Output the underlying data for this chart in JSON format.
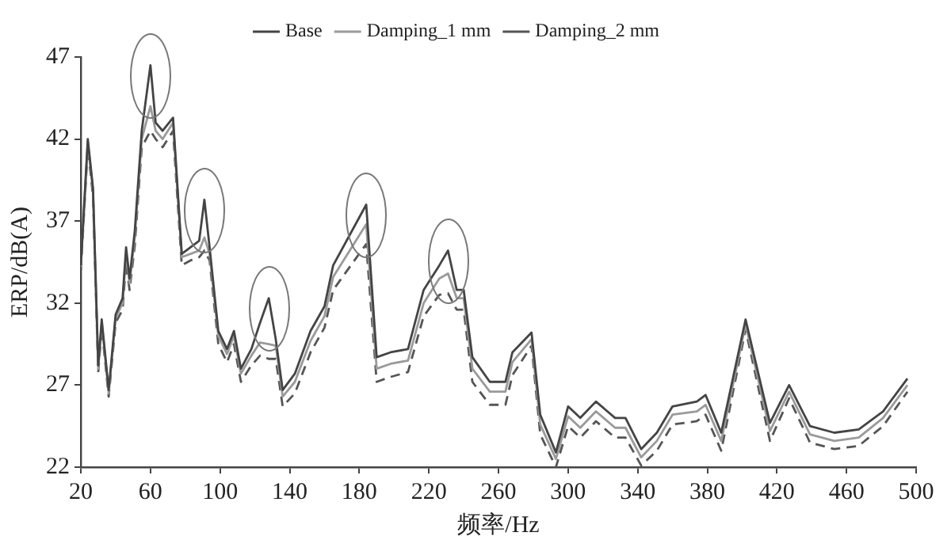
{
  "chart_data": {
    "type": "line",
    "xlabel": "频率/Hz",
    "ylabel": "ERP/dB(A)",
    "x": [
      20,
      24,
      27,
      30,
      32,
      36,
      40,
      44,
      46,
      48,
      51,
      55,
      60,
      63,
      67,
      73,
      78,
      83,
      88,
      91,
      94,
      99,
      104,
      108,
      112,
      118,
      123,
      128,
      132,
      136,
      143,
      152,
      160,
      165,
      184,
      190,
      198,
      208,
      217,
      226,
      231,
      236,
      240,
      245,
      255,
      264,
      268,
      279,
      284,
      293,
      300,
      307,
      316,
      327,
      333,
      342,
      351,
      360,
      374,
      379,
      388,
      402,
      416,
      427,
      439,
      453,
      467,
      481,
      495
    ],
    "series": [
      {
        "name": "Base",
        "color": "#444444",
        "line_style": "solid",
        "values": [
          34.3,
          42,
          39,
          28.2,
          31,
          26.7,
          31.3,
          32.3,
          35.4,
          33.5,
          36.4,
          42.5,
          46.5,
          43,
          42.5,
          43.3,
          35,
          35.4,
          35.8,
          38.3,
          35.4,
          30.3,
          29.2,
          30.3,
          28,
          29.2,
          30.8,
          32.3,
          29.8,
          26.7,
          27.7,
          30.3,
          31.8,
          34.3,
          38,
          28.7,
          29,
          29.2,
          32.8,
          34.3,
          35.2,
          32.8,
          32.8,
          28.7,
          27.2,
          27.2,
          29,
          30.2,
          25.2,
          22.9,
          25.7,
          25,
          26,
          25,
          25,
          23.1,
          24.1,
          25.7,
          26,
          26.4,
          24.1,
          31,
          24.7,
          27,
          24.5,
          24.1,
          24.3,
          25.4,
          27.4
        ]
      },
      {
        "name": "Damping_1 mm",
        "color": "#9a9a9a",
        "line_style": "solid",
        "values": [
          34.2,
          41.8,
          38.8,
          28,
          30.8,
          26.5,
          31.1,
          32,
          35,
          33.2,
          36,
          42,
          44,
          42.5,
          42,
          43,
          34.8,
          35,
          35.2,
          36,
          35,
          30,
          28.9,
          30,
          27.7,
          28.8,
          29.6,
          29.5,
          29.4,
          26.3,
          27.2,
          29.7,
          31.2,
          33.6,
          36.8,
          28,
          28.3,
          28.5,
          32,
          33.5,
          33.8,
          32.3,
          32.3,
          28,
          26.6,
          26.6,
          28.4,
          29.8,
          24.6,
          22.5,
          25.1,
          24.4,
          25.4,
          24.4,
          24.4,
          22.6,
          23.6,
          25.2,
          25.4,
          25.8,
          23.6,
          30.7,
          24.2,
          26.6,
          24,
          23.6,
          23.8,
          25,
          27
        ]
      },
      {
        "name": "Damping_2 mm",
        "color": "#555555",
        "line_style": "dashed",
        "values": [
          34,
          41.5,
          38.5,
          27.8,
          30.5,
          26.3,
          30.8,
          31.6,
          34.5,
          32.8,
          35.5,
          41.5,
          42.5,
          42,
          41.5,
          42.5,
          34.3,
          34.6,
          34.8,
          35.2,
          34.6,
          29.5,
          28.4,
          29.5,
          27.2,
          28.2,
          28.8,
          28.6,
          28.6,
          25.7,
          26.5,
          29,
          30.5,
          32.8,
          35.6,
          27.2,
          27.5,
          27.8,
          31.2,
          32.5,
          32.6,
          31.6,
          31.6,
          27.2,
          25.8,
          25.8,
          27.6,
          29.4,
          24,
          22,
          24.5,
          23.8,
          24.8,
          23.8,
          23.8,
          22.1,
          23,
          24.6,
          24.8,
          25.2,
          23,
          30.4,
          23.6,
          26.2,
          23.5,
          23.1,
          23.3,
          24.5,
          26.6
        ]
      }
    ],
    "xlim": [
      20,
      500
    ],
    "xticks": [
      20,
      60,
      100,
      140,
      180,
      220,
      260,
      300,
      340,
      380,
      420,
      460,
      500
    ],
    "ylim": [
      22,
      47
    ],
    "yticks": [
      22,
      27,
      32,
      37,
      42,
      47
    ],
    "grid": false,
    "legend": "top",
    "marker": "none"
  }
}
